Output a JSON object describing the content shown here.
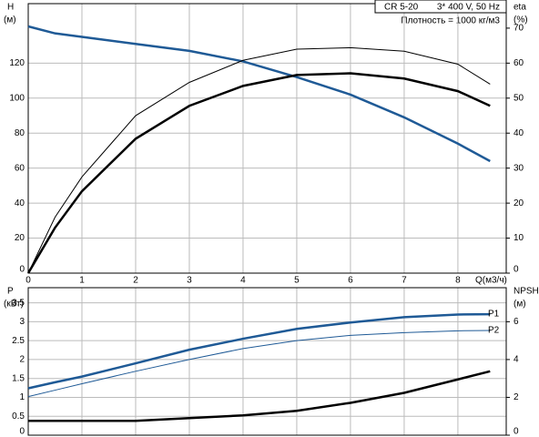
{
  "chart_data": [
    {
      "type": "line",
      "title": "CR 5-20",
      "subtitle": "3* 400 V, 50 Hz",
      "annotation": "Плотность = 1000 кг/м3",
      "y_label": "H",
      "y_unit": "(м)",
      "y2_label": "eta",
      "y2_unit": "(%)",
      "x_label": "Q(м3/ч)",
      "x": [
        0,
        0.5,
        1,
        2,
        3,
        4,
        5,
        6,
        7,
        8,
        8.6
      ],
      "xlim": [
        0,
        8.9
      ],
      "xticks": [
        0,
        1,
        2,
        3,
        4,
        5,
        6,
        7,
        8
      ],
      "ylim": [
        0,
        154
      ],
      "yticks": [
        0,
        20,
        40,
        60,
        80,
        100,
        120
      ],
      "y2lim": [
        0,
        77
      ],
      "y2ticks": [
        0,
        10,
        20,
        30,
        40,
        50,
        60,
        70,
        80
      ],
      "grid": true,
      "series": [
        {
          "color": "#1f5a96",
          "values": [
            141,
            137,
            135,
            131,
            127,
            121,
            112,
            102,
            89,
            74,
            64
          ]
        },
        {
          "color": "#000000",
          "axis": "y2",
          "values": [
            0,
            16,
            27.5,
            45,
            54.5,
            60.8,
            64,
            64.4,
            63.4,
            59.7,
            54
          ]
        },
        {
          "color": "#000000",
          "axis": "y2",
          "values": [
            0,
            13,
            23.4,
            38.4,
            47.8,
            53.5,
            56.6,
            57.1,
            55.6,
            52,
            47.8
          ]
        }
      ]
    },
    {
      "type": "line",
      "y_label": "P",
      "y_unit": "(кВт)",
      "y2_label": "NPSH",
      "y2_unit": "(м)",
      "x": [
        0,
        0.5,
        1,
        2,
        3,
        4,
        5,
        6,
        7,
        8,
        8.6
      ],
      "xlim": [
        0,
        8.9
      ],
      "ylim": [
        0,
        3.9
      ],
      "yticks": [
        0,
        0.5,
        1,
        1.5,
        2,
        2.5,
        3,
        3.5
      ],
      "y2lim": [
        0,
        7.8
      ],
      "y2ticks": [
        0,
        2,
        4,
        6
      ],
      "grid": true,
      "series": [
        {
          "name": "P1",
          "color": "#1f5a96",
          "values": [
            1.24,
            1.4,
            1.55,
            1.9,
            2.26,
            2.55,
            2.81,
            2.98,
            3.12,
            3.19,
            3.2
          ]
        },
        {
          "name": "P2",
          "color": "#1f5a96",
          "values": [
            1.02,
            1.19,
            1.36,
            1.69,
            2.0,
            2.29,
            2.5,
            2.64,
            2.71,
            2.76,
            2.77
          ]
        },
        {
          "color": "#000000",
          "axis": "y2",
          "values": [
            0.76,
            0.76,
            0.76,
            0.76,
            0.9,
            1.05,
            1.29,
            1.71,
            2.24,
            2.95,
            3.38
          ]
        }
      ]
    }
  ]
}
